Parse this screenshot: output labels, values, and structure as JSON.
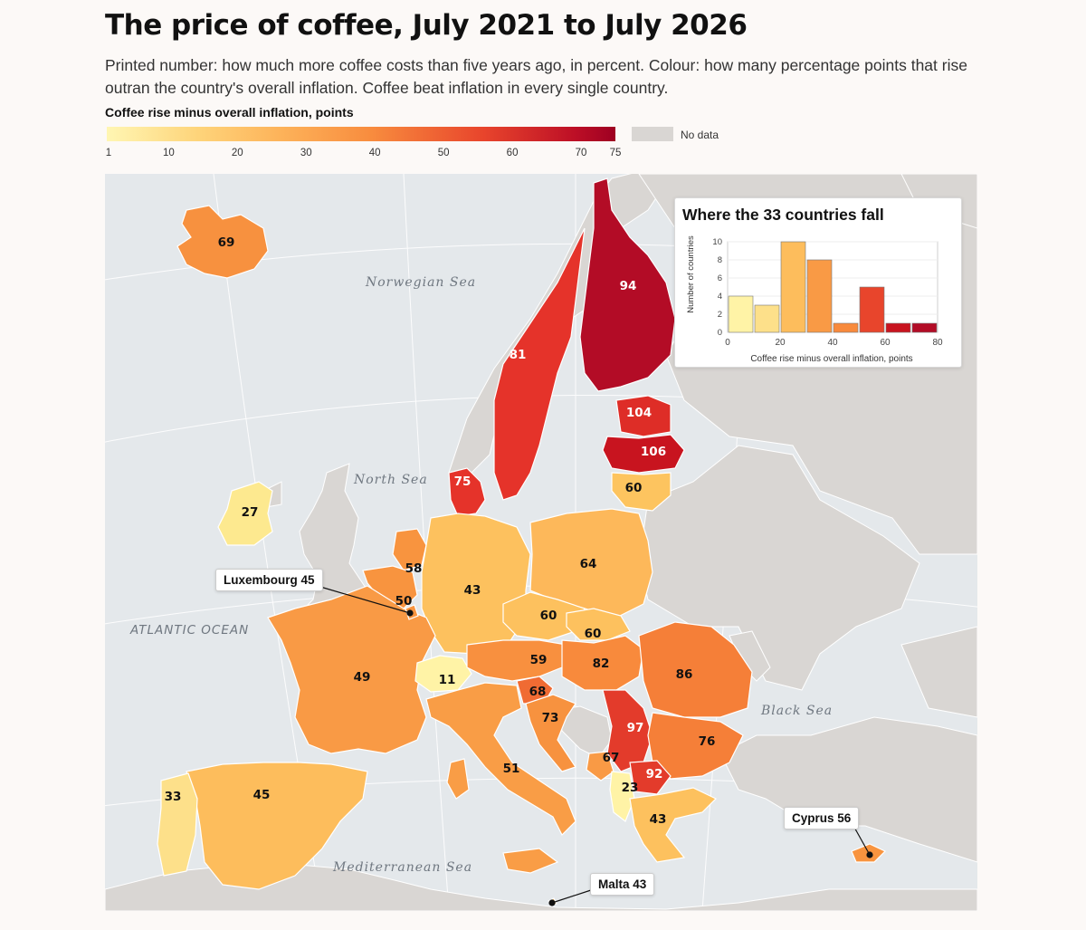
{
  "title": "The price of coffee, July 2021 to July 2026",
  "subtitle": "Printed number: how much more coffee costs than five years ago, in percent. Colour: how many percentage points that rise outran the country's overall inflation. Coffee beat inflation in every single country.",
  "legend": {
    "title": "Coffee rise minus overall inflation, points",
    "ticks": [
      "1",
      "10",
      "20",
      "30",
      "40",
      "50",
      "60",
      "70",
      "75"
    ],
    "tick_values": [
      1,
      10,
      20,
      30,
      40,
      50,
      60,
      70,
      75
    ],
    "min": 1,
    "max": 75,
    "no_data_label": "No data",
    "no_data_color": "#d9d6d3"
  },
  "colors": {
    "sea": "#e4e8eb",
    "land_no_data": "#d9d6d3",
    "border": "#ffffff",
    "ramp": [
      "#fff6b3",
      "#fed47a",
      "#fdb35a",
      "#f88c3e",
      "#e8452c",
      "#bd0f26",
      "#9e0022"
    ]
  },
  "map": {
    "sea_labels": [
      "Norwegian Sea",
      "North Sea",
      "Black Sea",
      "Mediterranean Sea"
    ],
    "ocean_label": "ATLANTIC OCEAN",
    "countries": [
      {
        "name": "iceland",
        "value": "69",
        "color": "#f7913f"
      },
      {
        "name": "sweden",
        "value": "81",
        "color": "#e5332a"
      },
      {
        "name": "finland",
        "value": "94",
        "color": "#b30c26"
      },
      {
        "name": "estonia",
        "value": "104",
        "color": "#de2d27"
      },
      {
        "name": "latvia",
        "value": "106",
        "color": "#c8141f"
      },
      {
        "name": "lithuania",
        "value": "60",
        "color": "#fdc45f"
      },
      {
        "name": "denmark",
        "value": "75",
        "color": "#e5332a"
      },
      {
        "name": "ireland",
        "value": "27",
        "color": "#fde98f"
      },
      {
        "name": "netherlands",
        "value": "58",
        "color": "#f8943f"
      },
      {
        "name": "belgium",
        "value": "50",
        "color": "#f8943f"
      },
      {
        "name": "germany",
        "value": "43",
        "color": "#fdc15e"
      },
      {
        "name": "poland",
        "value": "64",
        "color": "#fdb85a"
      },
      {
        "name": "czechia",
        "value": "60",
        "color": "#fdc15e"
      },
      {
        "name": "slovakia",
        "value": "60",
        "color": "#fdc15e"
      },
      {
        "name": "france",
        "value": "49",
        "color": "#f99a45"
      },
      {
        "name": "switzerland",
        "value": "11",
        "color": "#fff3a6"
      },
      {
        "name": "austria",
        "value": "59",
        "color": "#f8903f"
      },
      {
        "name": "hungary",
        "value": "82",
        "color": "#f88a3c"
      },
      {
        "name": "romania",
        "value": "86",
        "color": "#f57f38"
      },
      {
        "name": "slovenia",
        "value": "68",
        "color": "#f06b33"
      },
      {
        "name": "croatia",
        "value": "73",
        "color": "#f7923f"
      },
      {
        "name": "serbia",
        "value": "97",
        "color": "#e33b2b"
      },
      {
        "name": "bulgaria",
        "value": "76",
        "color": "#f57f38"
      },
      {
        "name": "montenegro",
        "value": "67",
        "color": "#f99a45"
      },
      {
        "name": "north-macedonia",
        "value": "92",
        "color": "#e33b2b"
      },
      {
        "name": "albania",
        "value": "23",
        "color": "#fff3a6"
      },
      {
        "name": "greece",
        "value": "43",
        "color": "#fdc15e"
      },
      {
        "name": "italy",
        "value": "51",
        "color": "#f99d46"
      },
      {
        "name": "spain",
        "value": "45",
        "color": "#fdbd5c"
      },
      {
        "name": "portugal",
        "value": "33",
        "color": "#fde08a"
      },
      {
        "name": "cyprus",
        "value": "",
        "color": "#f8943f"
      },
      {
        "name": "malta",
        "value": "",
        "color": "#fdc15e"
      },
      {
        "name": "luxembourg",
        "value": "",
        "color": "#f8943f"
      }
    ],
    "callouts": [
      {
        "name": "luxembourg",
        "label": "Luxembourg 45"
      },
      {
        "name": "cyprus",
        "label": "Cyprus 56"
      },
      {
        "name": "malta",
        "label": "Malta 43"
      }
    ]
  },
  "inset": {
    "title": "Where the 33 countries fall",
    "chart_data": {
      "type": "bar",
      "title": "Where the 33 countries fall",
      "xlabel": "Coffee rise minus overall inflation, points",
      "ylabel": "Number of countries",
      "bin_width": 10,
      "bins": [
        0,
        10,
        20,
        30,
        40,
        50,
        60,
        70
      ],
      "values": [
        4,
        3,
        10,
        8,
        1,
        5,
        1,
        1
      ],
      "colors": [
        "#fff3a6",
        "#fde08a",
        "#fdbd5c",
        "#f99a45",
        "#f88a3c",
        "#e8452c",
        "#c8141f",
        "#b30c26"
      ],
      "xlim": [
        0,
        80
      ],
      "ylim": [
        0,
        10
      ],
      "x_ticks": [
        "0",
        "20",
        "40",
        "60",
        "80"
      ],
      "y_ticks": [
        "0",
        "2",
        "4",
        "6",
        "8",
        "10"
      ],
      "grid": true
    }
  }
}
